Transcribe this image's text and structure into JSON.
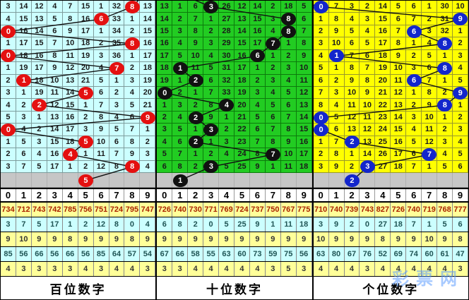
{
  "watermark": "彩票网",
  "column_headers": [
    "0",
    "1",
    "2",
    "3",
    "4",
    "5",
    "6",
    "7",
    "8",
    "9"
  ],
  "stat_row_styles": [
    {
      "bg": "#ffff99",
      "fg": "#aa2200"
    },
    {
      "bg": "#ccffff",
      "fg": "#205555"
    },
    {
      "bg": "#ffff99",
      "fg": "#333333"
    },
    {
      "bg": "#ccffff",
      "fg": "#205555"
    },
    {
      "bg": "#ffff99",
      "fg": "#333333"
    }
  ],
  "panels": [
    {
      "id": "hundreds",
      "title": "百位数字",
      "cell_bg": "#ccffff",
      "grid_line": "#7e9c9c",
      "ball_color": "#e41010",
      "line_color": "#111111",
      "draw_sequence": [
        8,
        6,
        0,
        8,
        0,
        7,
        1,
        5,
        2,
        9,
        0,
        5,
        4,
        8
      ],
      "pending_ball": 5,
      "rows": [
        [
          3,
          14,
          12,
          4,
          7,
          15,
          1,
          32,
          8,
          13
        ],
        [
          4,
          15,
          13,
          5,
          8,
          16,
          6,
          33,
          1,
          14
        ],
        [
          0,
          16,
          14,
          6,
          9,
          17,
          1,
          34,
          2,
          15
        ],
        [
          1,
          17,
          15,
          7,
          10,
          18,
          2,
          35,
          8,
          16
        ],
        [
          0,
          18,
          16,
          8,
          11,
          19,
          3,
          36,
          1,
          17
        ],
        [
          1,
          19,
          17,
          9,
          12,
          20,
          4,
          7,
          2,
          18
        ],
        [
          2,
          1,
          18,
          10,
          13,
          21,
          5,
          1,
          3,
          19
        ],
        [
          3,
          1,
          19,
          11,
          14,
          5,
          6,
          2,
          4,
          20
        ],
        [
          4,
          2,
          2,
          12,
          15,
          1,
          7,
          3,
          5,
          21
        ],
        [
          5,
          3,
          1,
          13,
          16,
          2,
          8,
          4,
          6,
          9
        ],
        [
          0,
          4,
          2,
          14,
          17,
          3,
          9,
          5,
          7,
          1
        ],
        [
          1,
          5,
          3,
          15,
          18,
          5,
          10,
          6,
          8,
          2
        ],
        [
          2,
          6,
          4,
          16,
          4,
          1,
          11,
          7,
          9,
          3
        ],
        [
          3,
          7,
          5,
          17,
          1,
          2,
          12,
          8,
          8,
          4
        ]
      ],
      "stats": [
        [
          734,
          712,
          743,
          742,
          785,
          756,
          751,
          724,
          795,
          747
        ],
        [
          3,
          7,
          5,
          17,
          1,
          2,
          12,
          8,
          0,
          4
        ],
        [
          9,
          10,
          9,
          9,
          8,
          9,
          9,
          9,
          8,
          9
        ],
        [
          85,
          56,
          66,
          56,
          66,
          56,
          85,
          64,
          57,
          54
        ],
        [
          4,
          3,
          3,
          3,
          3,
          4,
          3,
          4,
          4,
          3
        ]
      ]
    },
    {
      "id": "tens",
      "title": "十位数字",
      "cell_bg": "#22cc22",
      "grid_line": "#0c7a0c",
      "ball_color": "#111111",
      "line_color": "#111111",
      "draw_sequence": [
        3,
        8,
        8,
        7,
        6,
        1,
        2,
        0,
        4,
        2,
        3,
        2,
        7,
        3
      ],
      "pending_ball": 1,
      "rows": [
        [
          13,
          1,
          6,
          3,
          26,
          12,
          14,
          2,
          18,
          5
        ],
        [
          14,
          2,
          7,
          1,
          27,
          13,
          15,
          3,
          8,
          6
        ],
        [
          15,
          3,
          8,
          2,
          28,
          14,
          16,
          4,
          8,
          7
        ],
        [
          16,
          4,
          9,
          3,
          29,
          15,
          17,
          7,
          1,
          8
        ],
        [
          17,
          5,
          10,
          4,
          30,
          16,
          6,
          1,
          2,
          9
        ],
        [
          18,
          1,
          11,
          5,
          31,
          17,
          1,
          2,
          3,
          10
        ],
        [
          19,
          1,
          2,
          6,
          32,
          18,
          2,
          3,
          4,
          11
        ],
        [
          0,
          2,
          1,
          7,
          33,
          19,
          3,
          4,
          5,
          12
        ],
        [
          1,
          3,
          2,
          8,
          4,
          20,
          4,
          5,
          6,
          13
        ],
        [
          2,
          4,
          2,
          9,
          1,
          21,
          5,
          6,
          7,
          14
        ],
        [
          3,
          5,
          1,
          3,
          2,
          22,
          6,
          7,
          8,
          15
        ],
        [
          4,
          6,
          2,
          1,
          3,
          23,
          7,
          8,
          9,
          16
        ],
        [
          5,
          7,
          1,
          2,
          4,
          24,
          8,
          7,
          10,
          17
        ],
        [
          6,
          8,
          2,
          3,
          5,
          25,
          9,
          1,
          11,
          18
        ]
      ],
      "stats": [
        [
          726,
          740,
          730,
          771,
          769,
          724,
          737,
          750,
          767,
          775
        ],
        [
          6,
          8,
          2,
          0,
          5,
          25,
          9,
          1,
          11,
          18
        ],
        [
          9,
          9,
          9,
          9,
          9,
          9,
          9,
          9,
          9,
          9
        ],
        [
          67,
          66,
          58,
          55,
          63,
          60,
          73,
          59,
          75,
          56
        ],
        [
          3,
          3,
          4,
          4,
          4,
          4,
          4,
          3,
          5,
          3
        ]
      ]
    },
    {
      "id": "units",
      "title": "个位数字",
      "cell_bg": "#ffff00",
      "grid_line": "#99992a",
      "ball_color": "#1326cc",
      "line_color": "#111111",
      "draw_sequence": [
        0,
        9,
        6,
        8,
        1,
        8,
        6,
        9,
        8,
        0,
        0,
        2,
        7,
        3
      ],
      "pending_ball": 2,
      "rows": [
        [
          0,
          7,
          3,
          2,
          14,
          5,
          6,
          1,
          30,
          10
        ],
        [
          1,
          8,
          4,
          3,
          15,
          6,
          7,
          2,
          31,
          9
        ],
        [
          2,
          9,
          5,
          4,
          16,
          7,
          6,
          3,
          32,
          1
        ],
        [
          3,
          10,
          6,
          5,
          17,
          8,
          1,
          4,
          8,
          2
        ],
        [
          4,
          1,
          7,
          6,
          18,
          9,
          2,
          5,
          1,
          3
        ],
        [
          5,
          1,
          8,
          7,
          19,
          10,
          3,
          6,
          8,
          4
        ],
        [
          6,
          2,
          9,
          8,
          20,
          11,
          6,
          7,
          1,
          5
        ],
        [
          7,
          3,
          10,
          9,
          21,
          12,
          1,
          8,
          2,
          9
        ],
        [
          8,
          4,
          11,
          10,
          22,
          13,
          2,
          9,
          8,
          1
        ],
        [
          0,
          5,
          12,
          11,
          23,
          14,
          3,
          10,
          1,
          2
        ],
        [
          0,
          6,
          13,
          12,
          24,
          15,
          4,
          11,
          2,
          3
        ],
        [
          1,
          7,
          2,
          13,
          25,
          16,
          5,
          12,
          3,
          4
        ],
        [
          2,
          8,
          1,
          14,
          26,
          17,
          6,
          7,
          4,
          5
        ],
        [
          3,
          9,
          2,
          3,
          27,
          18,
          7,
          1,
          5,
          6
        ]
      ],
      "stats": [
        [
          710,
          740,
          739,
          743,
          827,
          726,
          740,
          719,
          768,
          777
        ],
        [
          3,
          9,
          2,
          0,
          27,
          18,
          7,
          1,
          5,
          6
        ],
        [
          10,
          9,
          9,
          9,
          8,
          9,
          9,
          10,
          9,
          8
        ],
        [
          63,
          80,
          67,
          76,
          52,
          69,
          74,
          60,
          61,
          47
        ],
        [
          4,
          4,
          4,
          3,
          4,
          4,
          4,
          4,
          4,
          3
        ]
      ]
    }
  ]
}
